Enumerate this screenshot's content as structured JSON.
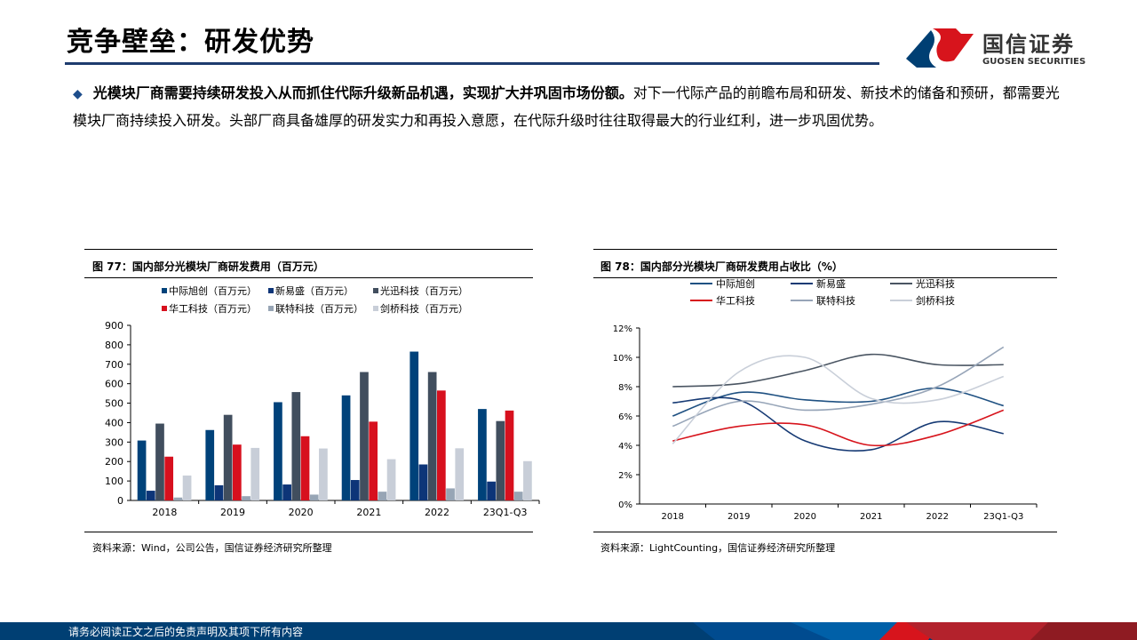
{
  "header": {
    "title": "竞争壁垒：研发优势",
    "logo_cn": "国信证券",
    "logo_en": "GUOSEN SECURITIES"
  },
  "bullet": {
    "bold": "光模块厂商需要持续研发投入从而抓住代际升级新品机遇，实现扩大并巩固市场份额。",
    "text": "对下一代际产品的前瞻布局和研发、新技术的储备和预研，都需要光模块厂商持续投入研发。头部厂商具备雄厚的研发实力和再投入意愿，在代际升级时往往取得最大的行业红利，进一步巩固优势。"
  },
  "footer": {
    "text": "请务必阅读正文之后的免责声明及其项下所有内容"
  },
  "colors": {
    "brand_blue": "#003f73",
    "brand_red": "#d7141c"
  },
  "chart_data": [
    {
      "type": "bar",
      "title": "图 77：国内部分光模块厂商研发费用（百万元）",
      "source": "资料来源：Wind，公司公告，国信证券经济研究所整理",
      "categories": [
        "2018",
        "2019",
        "2020",
        "2021",
        "2022",
        "23Q1-Q3"
      ],
      "ylim": [
        0,
        900
      ],
      "yticks": [
        "0",
        "100",
        "200",
        "300",
        "400",
        "500",
        "600",
        "700",
        "800",
        "900"
      ],
      "legend": "top",
      "series": [
        {
          "name": "中际旭创（百万元）",
          "color": "#00427a",
          "values": [
            308,
            362,
            505,
            540,
            765,
            470
          ]
        },
        {
          "name": "新易盛（百万元）",
          "color": "#0d3578",
          "values": [
            50,
            78,
            82,
            105,
            185,
            97
          ]
        },
        {
          "name": "光迅科技（百万元）",
          "color": "#414e5e",
          "values": [
            395,
            440,
            557,
            660,
            660,
            408
          ]
        },
        {
          "name": "华工科技（百万元）",
          "color": "#d7101e",
          "values": [
            225,
            287,
            330,
            405,
            565,
            462
          ]
        },
        {
          "name": "联特科技（百万元）",
          "color": "#97a5b5",
          "values": [
            15,
            22,
            30,
            45,
            62,
            45
          ]
        },
        {
          "name": "剑桥科技（百万元）",
          "color": "#c8ced8",
          "values": [
            128,
            270,
            267,
            212,
            268,
            202
          ]
        }
      ]
    },
    {
      "type": "line",
      "title": "图 78：国内部分光模块厂商研发费用占收比（%）",
      "source": "资料来源：LightCounting，国信证券经济研究所整理",
      "categories": [
        "2018",
        "2019",
        "2020",
        "2021",
        "2022",
        "23Q1-Q3"
      ],
      "ylim": [
        0,
        12
      ],
      "yticks": [
        "0%",
        "2%",
        "4%",
        "6%",
        "8%",
        "10%",
        "12%"
      ],
      "legend": "top",
      "series": [
        {
          "name": "中际旭创",
          "color": "#1f5182",
          "values": [
            6.0,
            7.6,
            7.1,
            7.0,
            7.9,
            6.7
          ]
        },
        {
          "name": "新易盛",
          "color": "#163a74",
          "values": [
            6.9,
            7.1,
            4.3,
            3.7,
            5.6,
            4.8
          ]
        },
        {
          "name": "光迅科技",
          "color": "#4a5562",
          "values": [
            8.0,
            8.2,
            9.1,
            10.2,
            9.5,
            9.5
          ]
        },
        {
          "name": "华工科技",
          "color": "#d7141c",
          "values": [
            4.3,
            5.3,
            5.4,
            4.0,
            4.7,
            6.4
          ]
        },
        {
          "name": "联特科技",
          "color": "#97a5b8",
          "values": [
            5.3,
            7.0,
            6.4,
            6.8,
            8.0,
            10.7
          ]
        },
        {
          "name": "剑桥科技",
          "color": "#c9cfd9",
          "values": [
            4.1,
            9.0,
            10.0,
            7.2,
            7.1,
            8.7
          ]
        }
      ]
    }
  ]
}
